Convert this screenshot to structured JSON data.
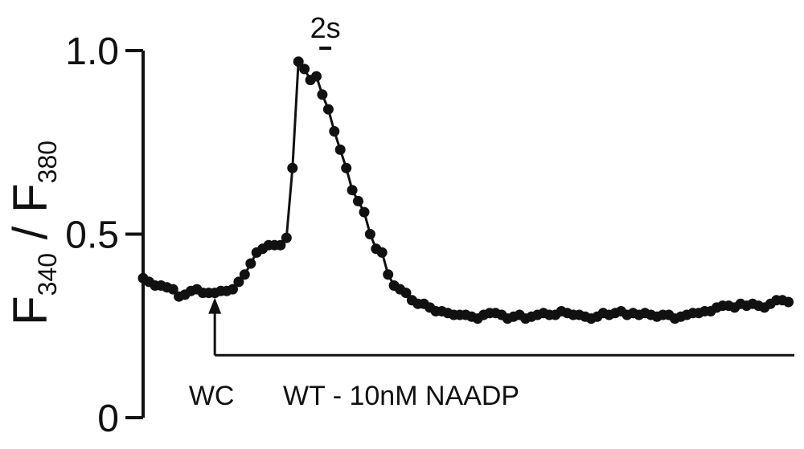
{
  "chart_data": {
    "type": "scatter",
    "ylabel": {
      "main1": "F",
      "sub1": "340",
      "sep": " / ",
      "main2": "F",
      "sub2": "380"
    },
    "ylim": [
      0,
      1.0
    ],
    "yticks": [
      {
        "value": 0,
        "label": "0"
      },
      {
        "value": 0.5,
        "label": "0.5"
      },
      {
        "value": 1.0,
        "label": "1.0"
      }
    ],
    "xlim": [
      0,
      109
    ],
    "grid": false,
    "scale_bar": {
      "label": "2s",
      "x_start": 29.5,
      "x_end": 31.5
    },
    "annotations": {
      "arrow_label": "WC",
      "arrow_x": 12,
      "arrow_y": 0.34,
      "bracket_y": 0.17,
      "bracket_x_end": 109,
      "condition_label": "WT - 10nM NAADP"
    },
    "series": [
      {
        "x": [
          0,
          1,
          2,
          3,
          4,
          5,
          6,
          7,
          8,
          9,
          10,
          11,
          12,
          13,
          14,
          15,
          16,
          17,
          18,
          19,
          20,
          21,
          22,
          23,
          24,
          25,
          26,
          27,
          28,
          29,
          30,
          31,
          32,
          33,
          34,
          35,
          36,
          37,
          38,
          39,
          40,
          41,
          42,
          43,
          44,
          45,
          46,
          47,
          48,
          49,
          50,
          51,
          52,
          53,
          54,
          55,
          56,
          57,
          58,
          59,
          60,
          61,
          62,
          63,
          64,
          65,
          66,
          67,
          68,
          69,
          70,
          71,
          72,
          73,
          74,
          75,
          76,
          77,
          78,
          79,
          80,
          81,
          82,
          83,
          84,
          85,
          86,
          87,
          88,
          89,
          90,
          91,
          92,
          93,
          94,
          95,
          96,
          97,
          98,
          99,
          100,
          101,
          102,
          103,
          104,
          105,
          106,
          107,
          108
        ],
        "y": [
          0.38,
          0.37,
          0.36,
          0.36,
          0.355,
          0.35,
          0.33,
          0.335,
          0.345,
          0.35,
          0.34,
          0.34,
          0.34,
          0.345,
          0.345,
          0.35,
          0.37,
          0.39,
          0.42,
          0.45,
          0.46,
          0.47,
          0.47,
          0.47,
          0.49,
          0.68,
          0.97,
          0.95,
          0.92,
          0.93,
          0.88,
          0.84,
          0.78,
          0.73,
          0.68,
          0.62,
          0.59,
          0.56,
          0.5,
          0.46,
          0.45,
          0.39,
          0.36,
          0.35,
          0.34,
          0.32,
          0.31,
          0.31,
          0.3,
          0.29,
          0.29,
          0.285,
          0.28,
          0.28,
          0.28,
          0.275,
          0.27,
          0.28,
          0.285,
          0.285,
          0.28,
          0.27,
          0.275,
          0.28,
          0.27,
          0.275,
          0.28,
          0.285,
          0.28,
          0.28,
          0.29,
          0.285,
          0.28,
          0.28,
          0.275,
          0.27,
          0.275,
          0.285,
          0.28,
          0.285,
          0.29,
          0.28,
          0.285,
          0.28,
          0.285,
          0.28,
          0.275,
          0.28,
          0.28,
          0.27,
          0.275,
          0.28,
          0.285,
          0.285,
          0.29,
          0.29,
          0.3,
          0.305,
          0.305,
          0.3,
          0.31,
          0.305,
          0.31,
          0.305,
          0.3,
          0.31,
          0.32,
          0.32,
          0.315
        ]
      }
    ]
  }
}
